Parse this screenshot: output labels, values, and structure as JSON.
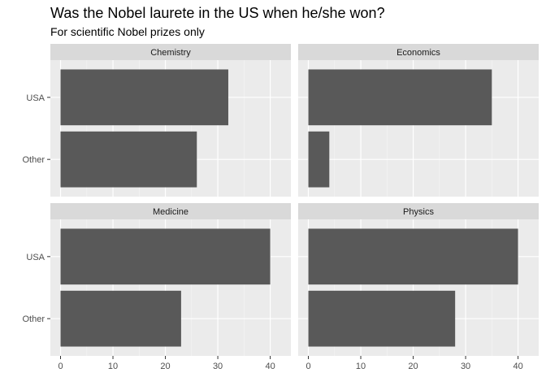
{
  "chart_data": {
    "type": "bar",
    "orientation": "horizontal",
    "facet": "wrap",
    "title": "Was the Nobel laurete in the US when he/she won?",
    "subtitle": "For scientific Nobel prizes only",
    "xlabel": "",
    "ylabel": "",
    "categories": [
      "USA",
      "Other"
    ],
    "xlim": [
      0,
      42
    ],
    "x_ticks": [
      0,
      10,
      20,
      30,
      40
    ],
    "x_tick_labels": [
      "0",
      "10",
      "20",
      "30",
      "40"
    ],
    "grid": true,
    "legend": "none",
    "bar_color": "#595959",
    "panel_background": "#ebebeb",
    "strip_background": "#d9d9d9",
    "facets": [
      {
        "label": "Chemistry",
        "values": [
          32,
          26
        ]
      },
      {
        "label": "Economics",
        "values": [
          35,
          4
        ]
      },
      {
        "label": "Medicine",
        "values": [
          40,
          23
        ]
      },
      {
        "label": "Physics",
        "values": [
          40,
          28
        ]
      }
    ]
  }
}
